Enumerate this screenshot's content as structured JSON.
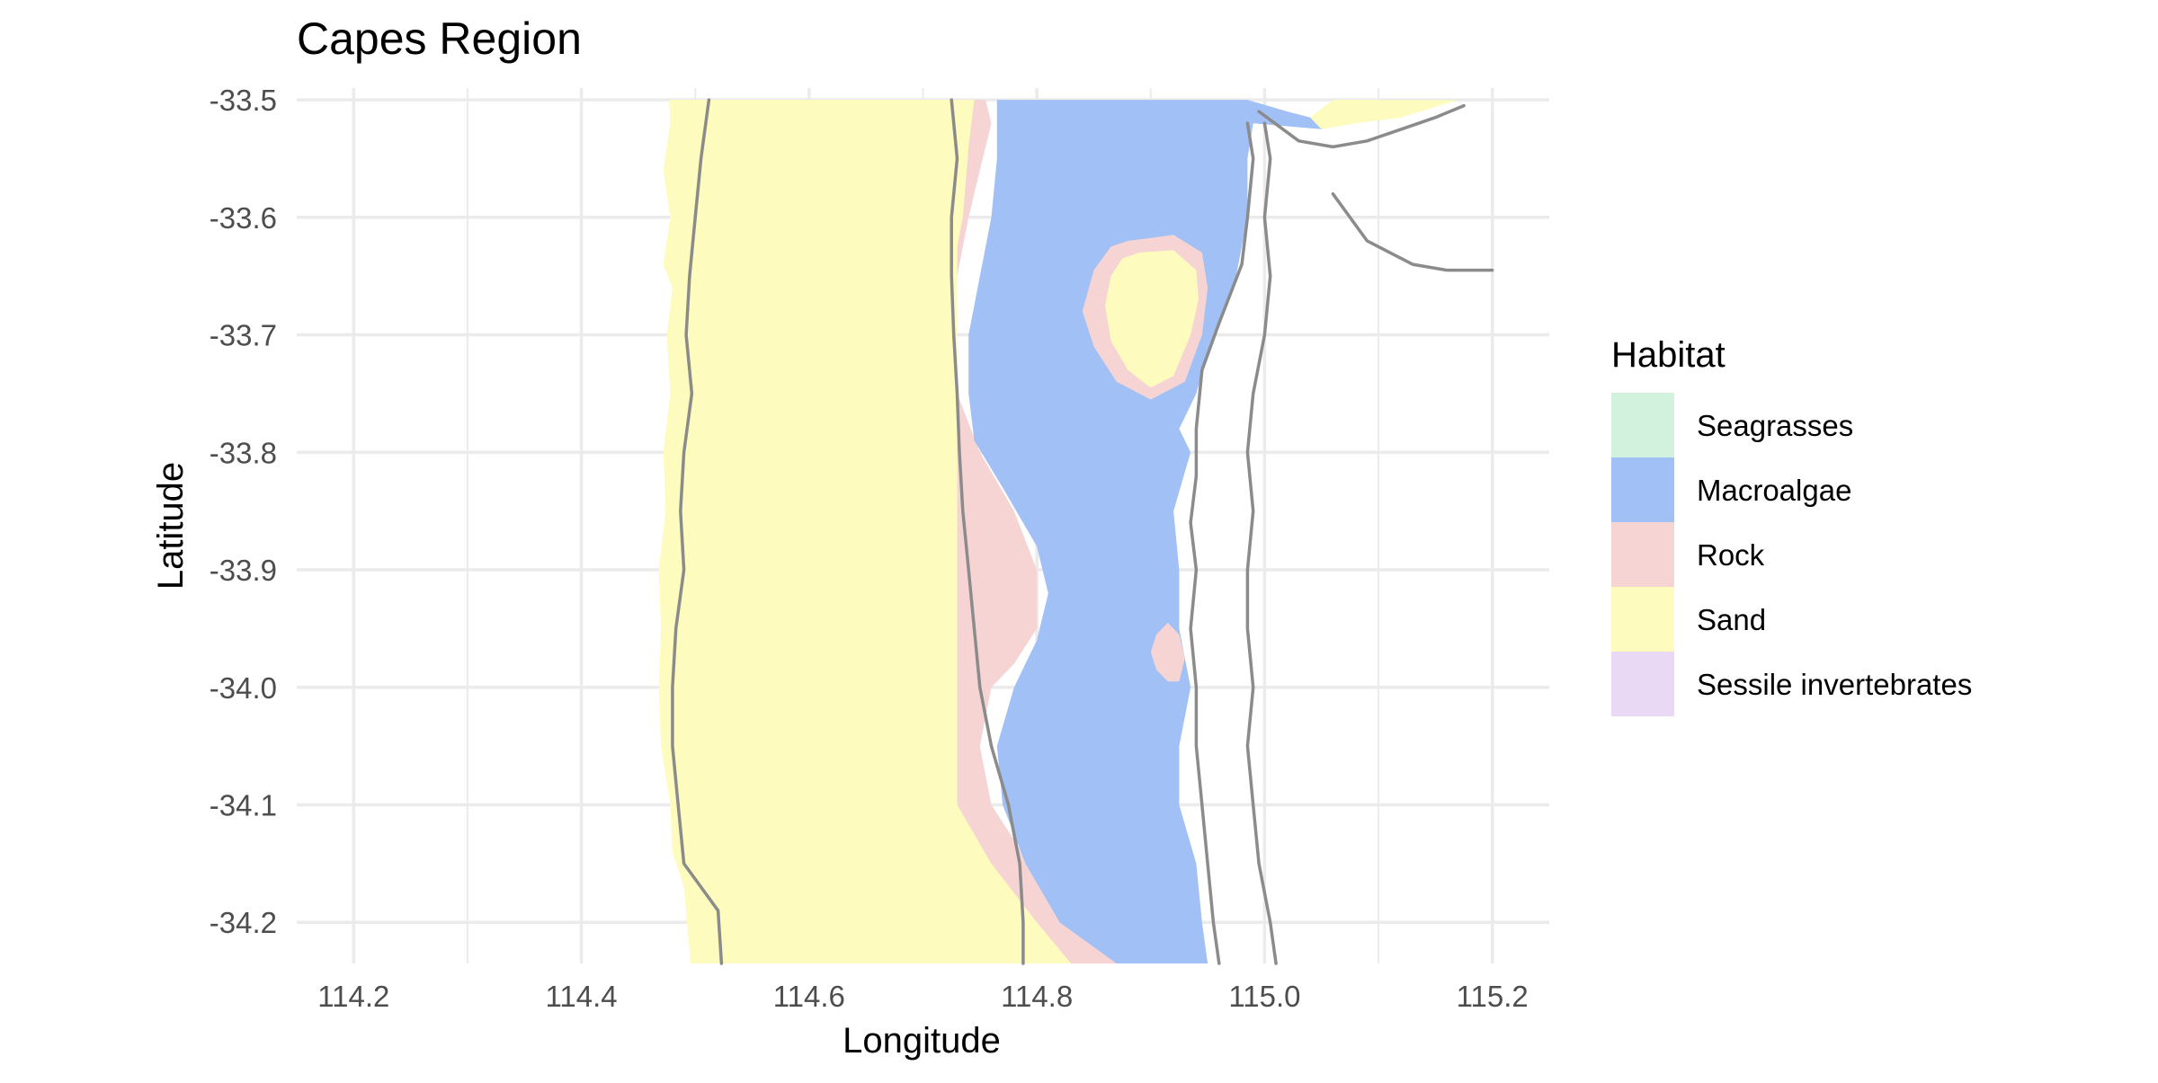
{
  "chart_data": {
    "type": "map",
    "title": "Capes Region",
    "xlabel": "Longitude",
    "ylabel": "Latitude",
    "xlim": [
      114.15,
      115.25
    ],
    "ylim": [
      -34.235,
      -33.49
    ],
    "x_ticks": [
      114.2,
      114.4,
      114.6,
      114.8,
      115.0,
      115.2
    ],
    "x_tick_labels": [
      "114.2",
      "114.4",
      "114.6",
      "114.8",
      "115.0",
      "115.2"
    ],
    "y_ticks": [
      -33.5,
      -33.6,
      -33.7,
      -33.8,
      -33.9,
      -34.0,
      -34.1,
      -34.2
    ],
    "y_tick_labels": [
      "-33.5",
      "-33.6",
      "-33.7",
      "-33.8",
      "-33.9",
      "-34.0",
      "-34.1",
      "-34.2"
    ],
    "grid": true,
    "legend": {
      "title": "Habitat",
      "position": "right",
      "items": [
        {
          "label": "Seagrasses",
          "color": "#d3f2dd"
        },
        {
          "label": "Macroalgae",
          "color": "#a1c0f5"
        },
        {
          "label": "Rock",
          "color": "#f7d4d4"
        },
        {
          "label": "Sand",
          "color": "#fdfbbd"
        },
        {
          "label": "Sessile invertebrates",
          "color": "#ead9f4"
        }
      ]
    },
    "colors": {
      "grid": "#ebebeb",
      "contour": "#8b8b8b",
      "text": "#4d4d4d"
    }
  }
}
